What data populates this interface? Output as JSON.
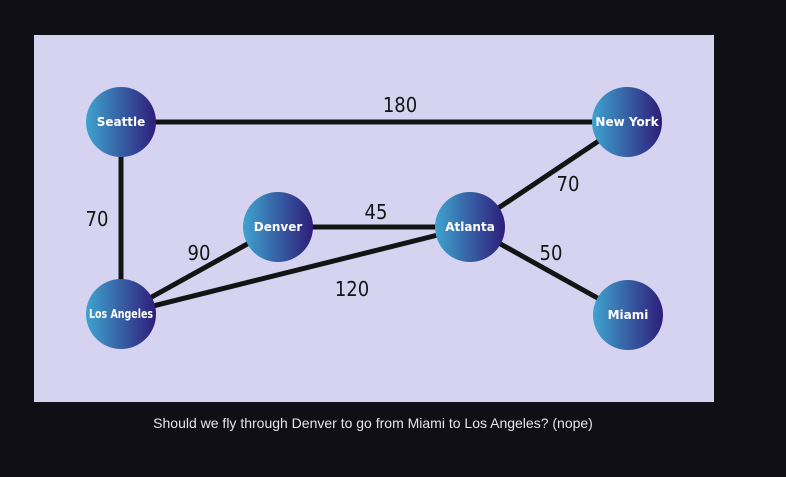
{
  "figure": {
    "background_color": "#d5d3f0",
    "node_gradient": [
      "#3fa3cf",
      "#2e1d7a"
    ],
    "nodes": [
      {
        "id": "seattle",
        "label": "Seattle"
      },
      {
        "id": "newyork",
        "label": "New York"
      },
      {
        "id": "denver",
        "label": "Denver"
      },
      {
        "id": "atlanta",
        "label": "Atlanta"
      },
      {
        "id": "losangeles",
        "label": "Los Angeles"
      },
      {
        "id": "miami",
        "label": "Miami"
      }
    ],
    "edges": [
      {
        "id": "seattle-newyork",
        "from": "Seattle",
        "to": "New York",
        "weight": "180"
      },
      {
        "id": "seattle-losangeles",
        "from": "Seattle",
        "to": "Los Angeles",
        "weight": "70"
      },
      {
        "id": "denver-atlanta",
        "from": "Denver",
        "to": "Atlanta",
        "weight": "45"
      },
      {
        "id": "losangeles-denver",
        "from": "Los Angeles",
        "to": "Denver",
        "weight": "90"
      },
      {
        "id": "losangeles-atlanta",
        "from": "Los Angeles",
        "to": "Atlanta",
        "weight": "120"
      },
      {
        "id": "atlanta-newyork",
        "from": "Atlanta",
        "to": "New York",
        "weight": "70"
      },
      {
        "id": "atlanta-miami",
        "from": "Atlanta",
        "to": "Miami",
        "weight": "50"
      }
    ]
  },
  "caption": "Should we fly through Denver to go from Miami to Los Angeles? (nope)"
}
